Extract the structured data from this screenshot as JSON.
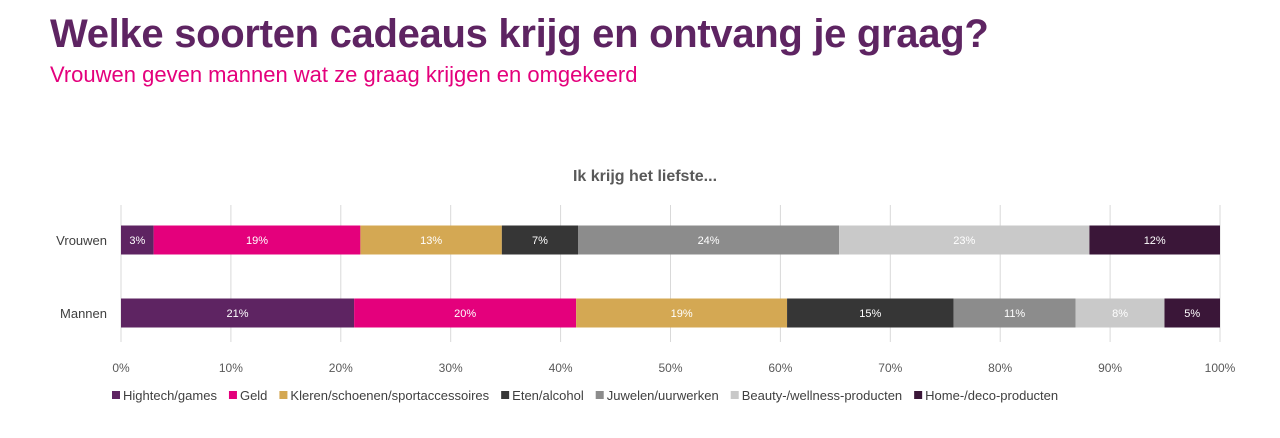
{
  "header": {
    "title": "Welke soorten cadeaus krijg en ontvang je graag?",
    "subtitle": "Vrouwen geven mannen wat ze graag krijgen en omgekeerd"
  },
  "chart_data": {
    "type": "bar",
    "orientation": "horizontal",
    "stacked": "percent",
    "title": "Ik krijg het liefste...",
    "categories": [
      "Vrouwen",
      "Mannen"
    ],
    "series": [
      {
        "name": "Hightech/games",
        "color": "#5e2462",
        "values": [
          3,
          21
        ],
        "labels": [
          "3%",
          "21%"
        ]
      },
      {
        "name": "Geld",
        "color": "#e4007c",
        "values": [
          19,
          20
        ],
        "labels": [
          "19%",
          "20%"
        ]
      },
      {
        "name": "Kleren/schoenen/sportaccessoires",
        "color": "#d4a853",
        "values": [
          13,
          19
        ],
        "labels": [
          "13%",
          "19%"
        ]
      },
      {
        "name": "Eten/alcohol",
        "color": "#363636",
        "values": [
          7,
          15
        ],
        "labels": [
          "7%",
          "15%"
        ]
      },
      {
        "name": "Juwelen/uurwerken",
        "color": "#8c8c8c",
        "values": [
          24,
          11
        ],
        "labels": [
          "24%",
          "11%"
        ]
      },
      {
        "name": "Beauty-/wellness-producten",
        "color": "#c9c9c9",
        "values": [
          23,
          8
        ],
        "labels": [
          "23%",
          "8%"
        ]
      },
      {
        "name": "Home-/deco-producten",
        "color": "#3a1638",
        "values": [
          12,
          5
        ],
        "labels": [
          "12%",
          "5%"
        ]
      }
    ],
    "xlim": [
      0,
      100
    ],
    "xticks": [
      "0%",
      "10%",
      "20%",
      "30%",
      "40%",
      "50%",
      "60%",
      "70%",
      "80%",
      "90%",
      "100%"
    ],
    "grid": true,
    "legend": "bottom"
  }
}
